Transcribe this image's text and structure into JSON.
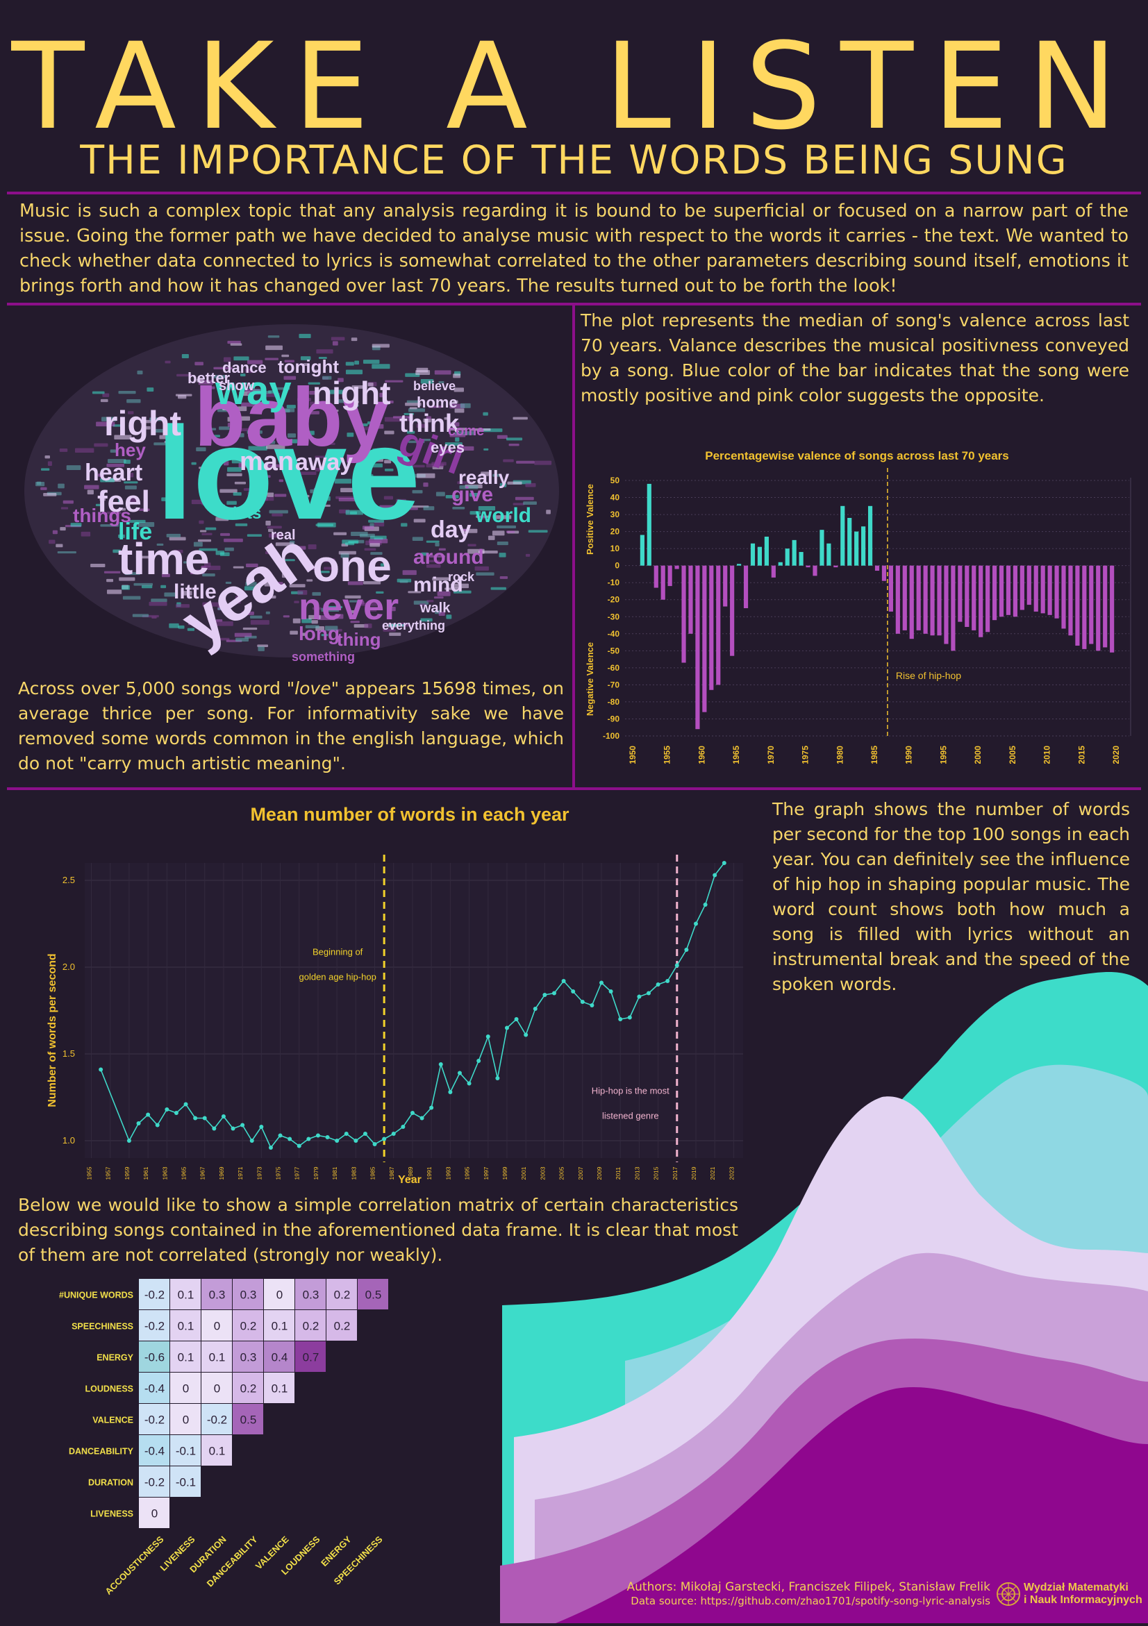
{
  "title": "TAKE A LISTEN",
  "subtitle": "THE IMPORTANCE OF THE WORDS BEING SUNG",
  "intro": "Music is such a complex topic that any analysis regarding it is bound to be superficial or focused on a narrow part of the issue. Going the former path we have decided to analyse music with respect to the words it carries - the text. We wanted to check whether data connected to lyrics is somewhat correlated to the other parameters describing sound itself, emotions it brings forth and how it has changed over last 70 years. The results turned out to be forth the look!",
  "wordcloud": {
    "words": [
      "love",
      "baby",
      "yeah",
      "time",
      "one",
      "never",
      "way",
      "night",
      "right",
      "girl",
      "feel",
      "heart",
      "man",
      "away",
      "think",
      "life",
      "world",
      "day",
      "around",
      "little",
      "mind",
      "things",
      "give",
      "really",
      "long",
      "thing",
      "hey",
      "dance",
      "tonight",
      "better",
      "show",
      "home",
      "eyes",
      "come",
      "heart",
      "lets",
      "real",
      "rock",
      "walk",
      "everything",
      "something",
      "believe"
    ],
    "caption_pre": "Across over 5,000 songs word ",
    "caption_word": "\"love\"",
    "caption_post": " appears 15698 times, on average thrice per song. For informativity sake we have removed some words common in the english language, which do not \"carry much artistic meaning\"."
  },
  "valence_text": "The plot represents the median of song's valence across last 70 years. Valance describes the musical positivness conveyed by a song. Blue color of the bar indicates that the song were mostly positive and pink color suggests the opposite.",
  "words_text": "The graph shows the number of words per second for the top 100 songs in each year. You can definitely see the influence of hip hop in shaping popular music. The word count shows both how much a song is filled with lyrics without an instrumental break and the speed of the spoken words.",
  "corr_text": "Below we would like to show a simple correlation matrix of certain characteristics describing songs contained in the aforementioned data frame. It is clear that most of them are not correlated (strongly nor weakly).",
  "footer": {
    "authors": "Authors: Mikołaj Garstecki, Franciszek Filipek, Stanisław Frelik",
    "source": "Data source: https://github.com/zhao1701/spotify-song-lyric-analysis",
    "logo_line1": "Wydział Matematyki",
    "logo_line2": "i Nauk Informacyjnych"
  },
  "colors": {
    "background": "#231a2c",
    "accent": "#ffd860",
    "divider": "#8c0f8a",
    "positive": "#3fd9c9",
    "negative": "#b44fbf"
  },
  "chart_data": [
    {
      "type": "bar",
      "title": "Percentagewise valence of songs across last 70 years",
      "ylabel_top": "Positive Valence",
      "ylabel_bottom": "Negative Valence",
      "ylim": [
        -100,
        50
      ],
      "yticks": [
        50,
        40,
        30,
        20,
        10,
        0,
        -10,
        -20,
        -30,
        -40,
        -50,
        -60,
        -70,
        -80,
        -90,
        -100
      ],
      "xticks": [
        1950,
        1955,
        1960,
        1965,
        1970,
        1975,
        1980,
        1985,
        1990,
        1995,
        2000,
        2005,
        2010,
        2015,
        2020
      ],
      "annotation": {
        "x": 1986.5,
        "label": "Rise of hip-hop"
      },
      "years": [
        1951,
        1952,
        1953,
        1954,
        1955,
        1956,
        1957,
        1958,
        1959,
        1960,
        1961,
        1962,
        1963,
        1964,
        1965,
        1966,
        1967,
        1968,
        1969,
        1970,
        1971,
        1972,
        1973,
        1974,
        1975,
        1976,
        1977,
        1978,
        1979,
        1980,
        1981,
        1982,
        1983,
        1984,
        1985,
        1986,
        1987,
        1988,
        1989,
        1990,
        1991,
        1992,
        1993,
        1994,
        1995,
        1996,
        1997,
        1998,
        1999,
        2000,
        2001,
        2002,
        2003,
        2004,
        2005,
        2006,
        2007,
        2008,
        2009,
        2010,
        2011,
        2012,
        2013,
        2014,
        2015,
        2016,
        2017,
        2018,
        2019
      ],
      "values": [
        18,
        48,
        -13,
        -20,
        -12,
        -2,
        -57,
        -40,
        -96,
        -86,
        -73,
        -70,
        -24,
        -53,
        1,
        -25,
        13,
        11,
        17,
        -7,
        2,
        10,
        15,
        8,
        -1,
        -6,
        21,
        13,
        -1,
        35,
        28,
        20,
        23,
        35,
        -3,
        -9,
        -27,
        -40,
        -38,
        -43,
        -38,
        -40,
        -41,
        -41,
        -46,
        -50,
        -33,
        -36,
        -38,
        -42,
        -39,
        -32,
        -30,
        -29,
        -30,
        -26,
        -23,
        -27,
        -28,
        -29,
        -31,
        -37,
        -41,
        -47,
        -49,
        -46,
        -50,
        -48,
        -51
      ]
    },
    {
      "type": "line",
      "title": "Mean number of words in each year",
      "xlabel": "Year",
      "ylabel": "Number of words per second",
      "ylim": [
        0.9,
        2.6
      ],
      "yticks": [
        1.0,
        1.5,
        2.0,
        2.5
      ],
      "xticks": [
        1955,
        1957,
        1959,
        1961,
        1963,
        1965,
        1967,
        1969,
        1971,
        1973,
        1975,
        1977,
        1979,
        1981,
        1983,
        1985,
        1987,
        1989,
        1991,
        1993,
        1995,
        1997,
        1999,
        2001,
        2003,
        2005,
        2007,
        2009,
        2011,
        2013,
        2015,
        2017,
        2019,
        2021,
        2023
      ],
      "annotations": [
        {
          "x": 1986,
          "label1": "Beginning of",
          "label2": "golden age hip-hop",
          "color": "#f2d22a"
        },
        {
          "x": 2017,
          "label1": "Hip-hop is the most",
          "label2": "listened genre",
          "color": "#f2b4cf"
        }
      ],
      "x": [
        1956,
        1959,
        1960,
        1961,
        1962,
        1963,
        1964,
        1965,
        1966,
        1967,
        1968,
        1969,
        1970,
        1971,
        1972,
        1973,
        1974,
        1975,
        1976,
        1977,
        1978,
        1979,
        1980,
        1981,
        1982,
        1983,
        1984,
        1985,
        1986,
        1987,
        1988,
        1989,
        1990,
        1991,
        1992,
        1993,
        1994,
        1995,
        1996,
        1997,
        1998,
        1999,
        2000,
        2001,
        2002,
        2003,
        2004,
        2005,
        2006,
        2007,
        2008,
        2009,
        2010,
        2011,
        2012,
        2013,
        2014,
        2015,
        2016,
        2017,
        2018,
        2019,
        2020,
        2021,
        2022
      ],
      "y": [
        1.41,
        1.0,
        1.1,
        1.15,
        1.09,
        1.18,
        1.16,
        1.21,
        1.13,
        1.13,
        1.07,
        1.14,
        1.07,
        1.09,
        1.0,
        1.08,
        0.96,
        1.03,
        1.01,
        0.97,
        1.01,
        1.03,
        1.02,
        1.0,
        1.04,
        1.0,
        1.04,
        0.98,
        1.01,
        1.04,
        1.08,
        1.16,
        1.13,
        1.19,
        1.44,
        1.28,
        1.39,
        1.33,
        1.46,
        1.6,
        1.36,
        1.65,
        1.7,
        1.61,
        1.76,
        1.84,
        1.85,
        1.92,
        1.86,
        1.8,
        1.78,
        1.91,
        1.86,
        1.7,
        1.71,
        1.83,
        1.85,
        1.9,
        1.92,
        2.01,
        2.1,
        2.25,
        2.36,
        2.53,
        2.6
      ]
    },
    {
      "type": "heatmap",
      "rows": [
        "#UNIQUE WORDS",
        "SPEECHINESS",
        "ENERGY",
        "LOUDNESS",
        "VALENCE",
        "DANCEABILITY",
        "DURATION",
        "LIVENESS"
      ],
      "columns": [
        "ACCOUSTICNESS",
        "LIVENESS",
        "DURATION",
        "DANCEABILITY",
        "VALENCE",
        "LOUDNESS",
        "ENERGY",
        "SPEECHINESS"
      ],
      "values": [
        [
          -0.2,
          0.1,
          0.3,
          0.3,
          0,
          0.3,
          0.2,
          0.5
        ],
        [
          -0.2,
          0.1,
          0,
          0.2,
          0.1,
          0.2,
          0.2
        ],
        [
          -0.6,
          0.1,
          0.1,
          0.3,
          0.4,
          0.7
        ],
        [
          -0.4,
          0,
          0,
          0.2,
          0.1
        ],
        [
          -0.2,
          0,
          -0.2,
          0.5
        ],
        [
          -0.4,
          -0.1,
          0.1
        ],
        [
          -0.2,
          -0.1
        ],
        [
          0
        ]
      ]
    }
  ]
}
